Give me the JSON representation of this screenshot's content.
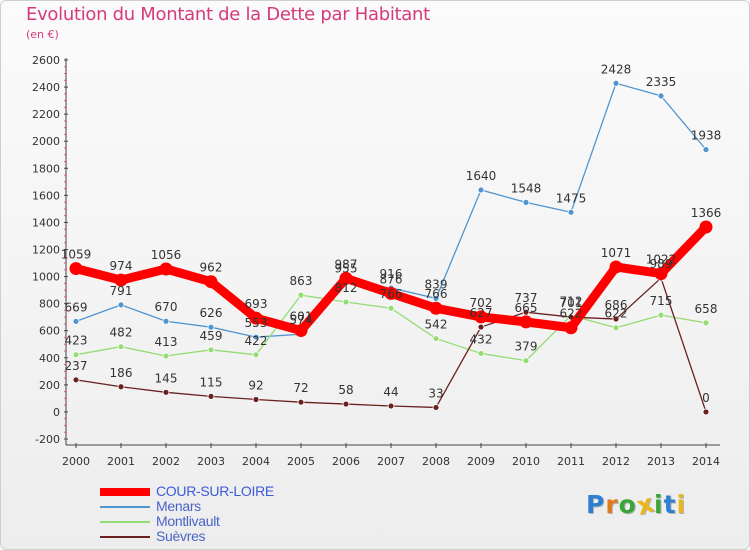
{
  "title": "Evolution du Montant de la Dette par Habitant",
  "subtitle": "(en €)",
  "logo": {
    "text": "Proxiti",
    "letter_colors": [
      "#2f7fd1",
      "#e07a1c",
      "#3aa53a",
      "#e8b81a",
      "#3aa53a",
      "#2f7fd1",
      "#e8b81a"
    ]
  },
  "chart_data": {
    "type": "line",
    "title": "Evolution du Montant de la Dette par Habitant",
    "subtitle": "(en €)",
    "x": [
      "2000",
      "2001",
      "2002",
      "2003",
      "2004",
      "2005",
      "2006",
      "2007",
      "2008",
      "2009",
      "2010",
      "2011",
      "2012",
      "2013",
      "2014"
    ],
    "y_ticks": [
      "-200",
      "0",
      "200",
      "400",
      "600",
      "800",
      "1000",
      "1200",
      "1400",
      "1600",
      "1800",
      "2000",
      "2200",
      "2400",
      "2600"
    ],
    "ylim": [
      -200,
      2600
    ],
    "grid": false,
    "legend_position": "bottom",
    "series": [
      {
        "name": "COUR-SUR-LOIRE",
        "color": "#ff0000",
        "values": [
          1059,
          974,
          1056,
          962,
          693,
          601,
          987,
          876,
          766,
          702,
          665,
          622,
          1071,
          1022,
          1366
        ],
        "labels": [
          "1059",
          "974",
          "1056",
          "962",
          "693",
          "601",
          "987",
          "876",
          "766",
          "702",
          "665",
          "622",
          "1071",
          "1022",
          "1366"
        ]
      },
      {
        "name": "Menars",
        "color": "#4f95d0",
        "values": [
          669,
          791,
          670,
          626,
          553,
          574,
          955,
          916,
          839,
          1640,
          1548,
          1475,
          2428,
          2335,
          1938
        ],
        "labels": [
          "669",
          "791",
          "670",
          "626",
          "553",
          "574",
          "955",
          "916",
          "839",
          "1640",
          "1548",
          "1475",
          "2428",
          "2335",
          "1938"
        ]
      },
      {
        "name": "Montlivault",
        "color": "#94dc73",
        "values": [
          423,
          482,
          413,
          459,
          422,
          863,
          812,
          766,
          542,
          432,
          379,
          712,
          622,
          715,
          658
        ],
        "labels": [
          "423",
          "482",
          "413",
          "459",
          "422",
          "863",
          "812",
          "766",
          "542",
          "432",
          "379",
          "712",
          "622",
          "715",
          "658"
        ]
      },
      {
        "name": "Suèvres",
        "color": "#6b2020",
        "values": [
          237,
          186,
          145,
          115,
          92,
          72,
          58,
          44,
          33,
          627,
          737,
          701,
          686,
          989,
          0
        ],
        "labels": [
          "237",
          "186",
          "145",
          "115",
          "92",
          "72",
          "58",
          "44",
          "33",
          "627",
          "737",
          "701",
          "686",
          "989",
          "0"
        ]
      }
    ]
  }
}
